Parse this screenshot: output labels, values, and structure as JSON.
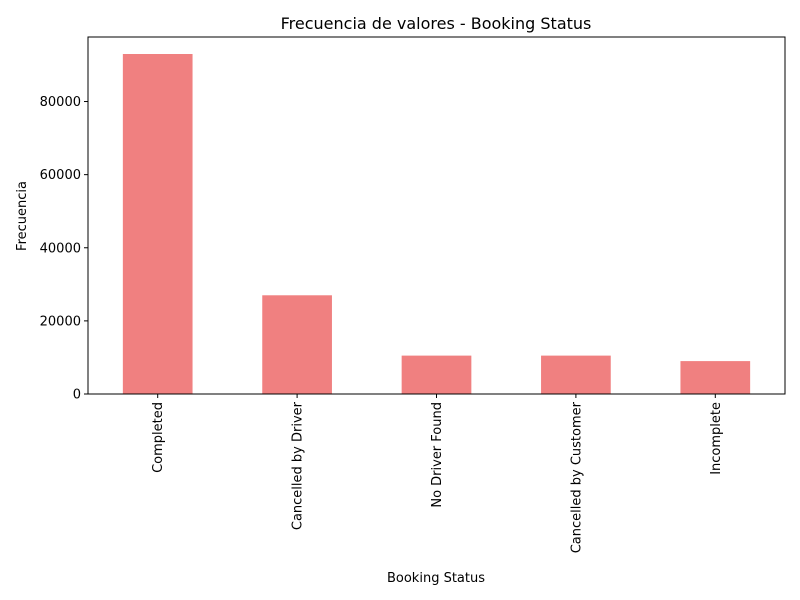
{
  "chart_data": {
    "type": "bar",
    "title": "Frecuencia de valores - Booking Status",
    "xlabel": "Booking Status",
    "ylabel": "Frecuencia",
    "categories": [
      "Completed",
      "Cancelled by Driver",
      "No Driver Found",
      "Cancelled by Customer",
      "Incomplete"
    ],
    "values": [
      93000,
      27000,
      10500,
      10500,
      9000
    ],
    "ylim": [
      0,
      97650
    ],
    "yticks": [
      0,
      20000,
      40000,
      60000,
      80000
    ],
    "ytick_labels": [
      "0",
      "20000",
      "40000",
      "60000",
      "80000"
    ],
    "bar_color": "#f08080",
    "grid": false,
    "legend": "none"
  }
}
